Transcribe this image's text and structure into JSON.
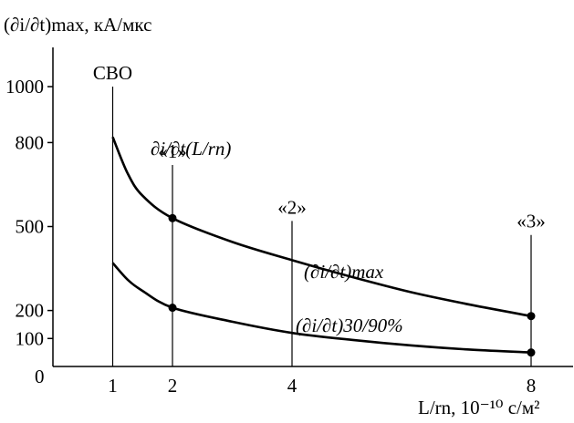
{
  "chart_data": {
    "type": "line",
    "ylabel": "(∂i/∂t)max, кА/мкс",
    "xlabel": "L/rn, 10⁻¹⁰ с/м²",
    "xlim": [
      0,
      8.6
    ],
    "ylim": [
      0,
      1000
    ],
    "x_ticks": [
      1,
      2,
      4,
      8
    ],
    "y_ticks": [
      100,
      200,
      500,
      800,
      1000
    ],
    "y_zero_label": "0",
    "grid": false,
    "markers": [
      {
        "x": 1,
        "label": "СВО",
        "top": 1000
      },
      {
        "x": 2,
        "label": "«1»",
        "top": 720
      },
      {
        "x": 4,
        "label": "«2»",
        "top": 520
      },
      {
        "x": 8,
        "label": "«3»",
        "top": 470
      }
    ],
    "series": [
      {
        "name": "(∂i/∂t)max",
        "points": [
          [
            1,
            820
          ],
          [
            1.25,
            690
          ],
          [
            1.5,
            610
          ],
          [
            2,
            530
          ],
          [
            3,
            445
          ],
          [
            4,
            380
          ],
          [
            5,
            320
          ],
          [
            6,
            265
          ],
          [
            7,
            220
          ],
          [
            8,
            180
          ]
        ],
        "dot_x": [
          2,
          8
        ]
      },
      {
        "name": "(∂i/∂t)30/90%",
        "points": [
          [
            1,
            370
          ],
          [
            1.25,
            310
          ],
          [
            1.5,
            270
          ],
          [
            2,
            210
          ],
          [
            3,
            160
          ],
          [
            4,
            120
          ],
          [
            5,
            95
          ],
          [
            6,
            75
          ],
          [
            7,
            60
          ],
          [
            8,
            50
          ]
        ],
        "dot_x": [
          2,
          8
        ]
      }
    ],
    "curve_title": "∂i/∂t(L/rn)"
  }
}
